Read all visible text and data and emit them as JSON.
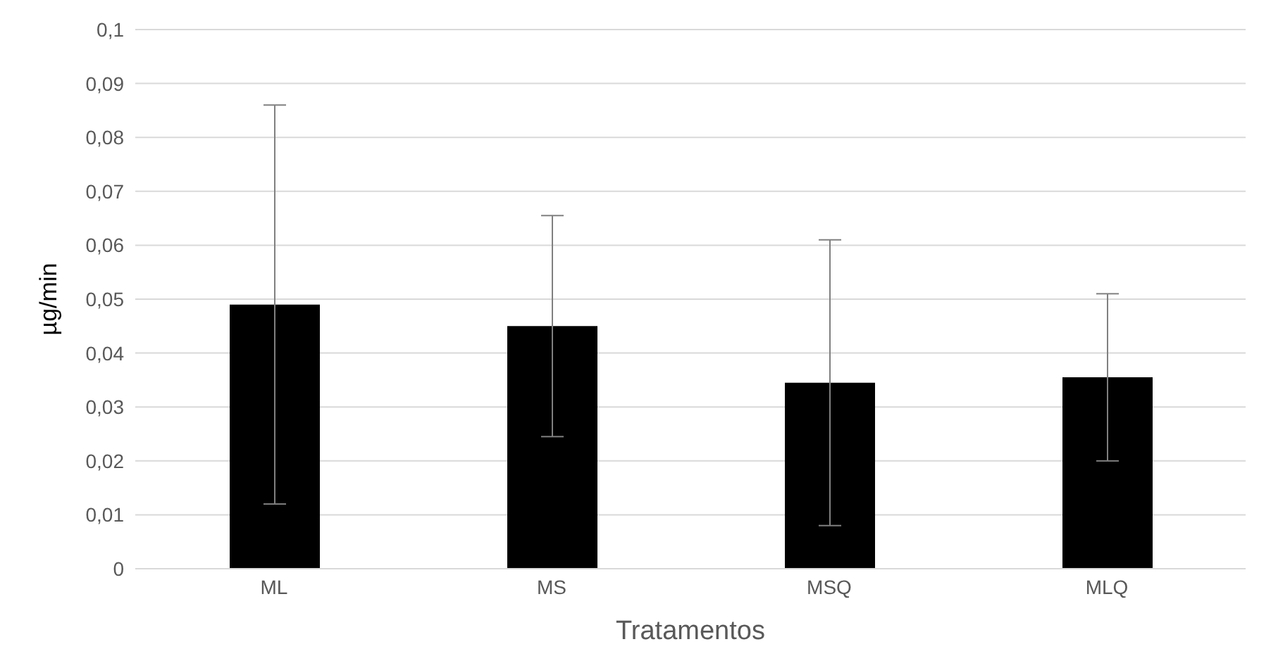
{
  "chart_data": {
    "type": "bar",
    "xlabel": "Tratamentos",
    "ylabel": "µg/min",
    "categories": [
      "ML",
      "MS",
      "MSQ",
      "MLQ"
    ],
    "values": [
      0.049,
      0.045,
      0.0345,
      0.0355
    ],
    "errors": [
      0.037,
      0.0205,
      0.0265,
      0.0155
    ],
    "color": "#000000",
    "ylim": [
      0,
      0.1
    ],
    "yticks": [
      {
        "value": 0,
        "label": "0"
      },
      {
        "value": 0.01,
        "label": "0,01"
      },
      {
        "value": 0.02,
        "label": "0,02"
      },
      {
        "value": 0.03,
        "label": "0,03"
      },
      {
        "value": 0.04,
        "label": "0,04"
      },
      {
        "value": 0.05,
        "label": "0,05"
      },
      {
        "value": 0.06,
        "label": "0,06"
      },
      {
        "value": 0.07,
        "label": "0,07"
      },
      {
        "value": 0.08,
        "label": "0,08"
      },
      {
        "value": 0.09,
        "label": "0,09"
      },
      {
        "value": 0.1,
        "label": "0,1"
      }
    ],
    "grid": "y"
  }
}
